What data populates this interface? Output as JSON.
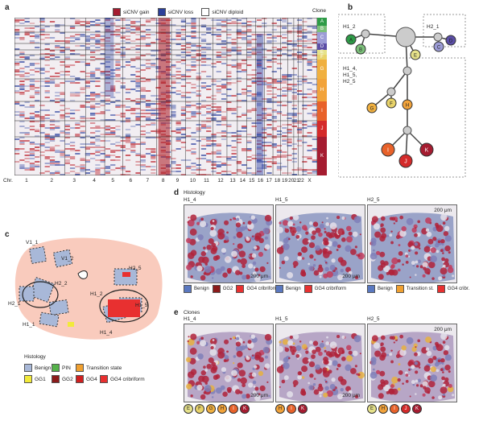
{
  "panels": {
    "a": "a",
    "b": "b",
    "c": "c",
    "d": "d",
    "e": "e"
  },
  "heatmap": {
    "legend": {
      "gain": "siCNV gain",
      "loss": "siCNV loss",
      "diploid": "siCNV diploid"
    },
    "clone_label": "Clone",
    "chr_prefix": "Chr.",
    "chromosomes": [
      "1",
      "2",
      "3",
      "4",
      "5",
      "6",
      "7",
      "8",
      "9",
      "10",
      "11",
      "12",
      "13",
      "14",
      "15",
      "16",
      "17",
      "18",
      "19",
      "20",
      "21",
      "22",
      "X"
    ],
    "clones": [
      {
        "id": "A",
        "color": "#2e9b47"
      },
      {
        "id": "B",
        "color": "#7cc07a"
      },
      {
        "id": "C",
        "color": "#9c9cd6"
      },
      {
        "id": "D",
        "color": "#5b4ea6"
      },
      {
        "id": "E",
        "color": "#e6e28a"
      },
      {
        "id": "F",
        "color": "#e8d36a"
      },
      {
        "id": "G",
        "color": "#f0b040"
      },
      {
        "id": "H",
        "color": "#f2a33a"
      },
      {
        "id": "I",
        "color": "#e8622a"
      },
      {
        "id": "J",
        "color": "#d42a2a"
      },
      {
        "id": "K",
        "color": "#a51c30"
      }
    ]
  },
  "tree": {
    "groups": [
      "H1_2",
      "H2_1",
      "H1_4,\nH1_5,\nH2_5"
    ],
    "nodes": [
      {
        "id": "A",
        "color": "#2e9b47"
      },
      {
        "id": "B",
        "color": "#7cc07a"
      },
      {
        "id": "C",
        "color": "#9c9cd6"
      },
      {
        "id": "D",
        "color": "#5b4ea6"
      },
      {
        "id": "E",
        "color": "#e6e28a"
      },
      {
        "id": "F",
        "color": "#e8d36a"
      },
      {
        "id": "G",
        "color": "#f0b040"
      },
      {
        "id": "H",
        "color": "#f2a33a"
      },
      {
        "id": "I",
        "color": "#e8622a"
      },
      {
        "id": "J",
        "color": "#d42a2a"
      },
      {
        "id": "K",
        "color": "#a51c30"
      }
    ]
  },
  "tissue_map": {
    "sections": [
      "V1_1",
      "V1_2",
      "H2_2",
      "H1_2",
      "H2_1",
      "H1_1",
      "H1_4",
      "H1_5",
      "H2_5"
    ],
    "legend_title": "Histology",
    "legend": [
      {
        "label": "Benign",
        "color": "#a8b8d8"
      },
      {
        "label": "PIN",
        "color": "#55b24a"
      },
      {
        "label": "Transition state",
        "color": "#f0a030"
      },
      {
        "label": "GG1",
        "color": "#f2ea3a"
      },
      {
        "label": "GG2",
        "color": "#8b1a1a"
      },
      {
        "label": "GG4",
        "color": "#d02020"
      },
      {
        "label": "GG4 cribriform",
        "color": "#e83030"
      }
    ]
  },
  "histology": {
    "row_title": "Histology",
    "samples": [
      "H1_4",
      "H1_5",
      "H2_5"
    ],
    "scale": "200 μm",
    "legends": [
      [
        {
          "label": "Benign",
          "color": "#5a78c0"
        },
        {
          "label": "GG2",
          "color": "#8b1a1a"
        },
        {
          "label": "GG4 cribriform",
          "color": "#e83030"
        }
      ],
      [
        {
          "label": "Benign",
          "color": "#5a78c0"
        },
        {
          "label": "GG4 cribriform",
          "color": "#e83030"
        }
      ],
      [
        {
          "label": "Benign",
          "color": "#5a78c0"
        },
        {
          "label": "Transition st.",
          "color": "#f0a030"
        },
        {
          "label": "GG4 cribr.",
          "color": "#e83030"
        }
      ]
    ]
  },
  "clones_row": {
    "row_title": "Clones",
    "samples": [
      "H1_4",
      "H1_5",
      "H2_5"
    ],
    "scale": "200 μm",
    "legends": [
      [
        {
          "id": "E",
          "color": "#e6e28a"
        },
        {
          "id": "F",
          "color": "#e8d36a"
        },
        {
          "id": "G",
          "color": "#f0b040"
        },
        {
          "id": "H",
          "color": "#f2a33a"
        },
        {
          "id": "I",
          "color": "#e8622a"
        },
        {
          "id": "K",
          "color": "#a51c30"
        }
      ],
      [
        {
          "id": "H",
          "color": "#f2a33a"
        },
        {
          "id": "I",
          "color": "#e8622a"
        },
        {
          "id": "K",
          "color": "#a51c30"
        }
      ],
      [
        {
          "id": "E",
          "color": "#e6e28a"
        },
        {
          "id": "H",
          "color": "#f2a33a"
        },
        {
          "id": "I",
          "color": "#e8622a"
        },
        {
          "id": "J",
          "color": "#d42a2a"
        },
        {
          "id": "K",
          "color": "#a51c30"
        }
      ]
    ]
  }
}
